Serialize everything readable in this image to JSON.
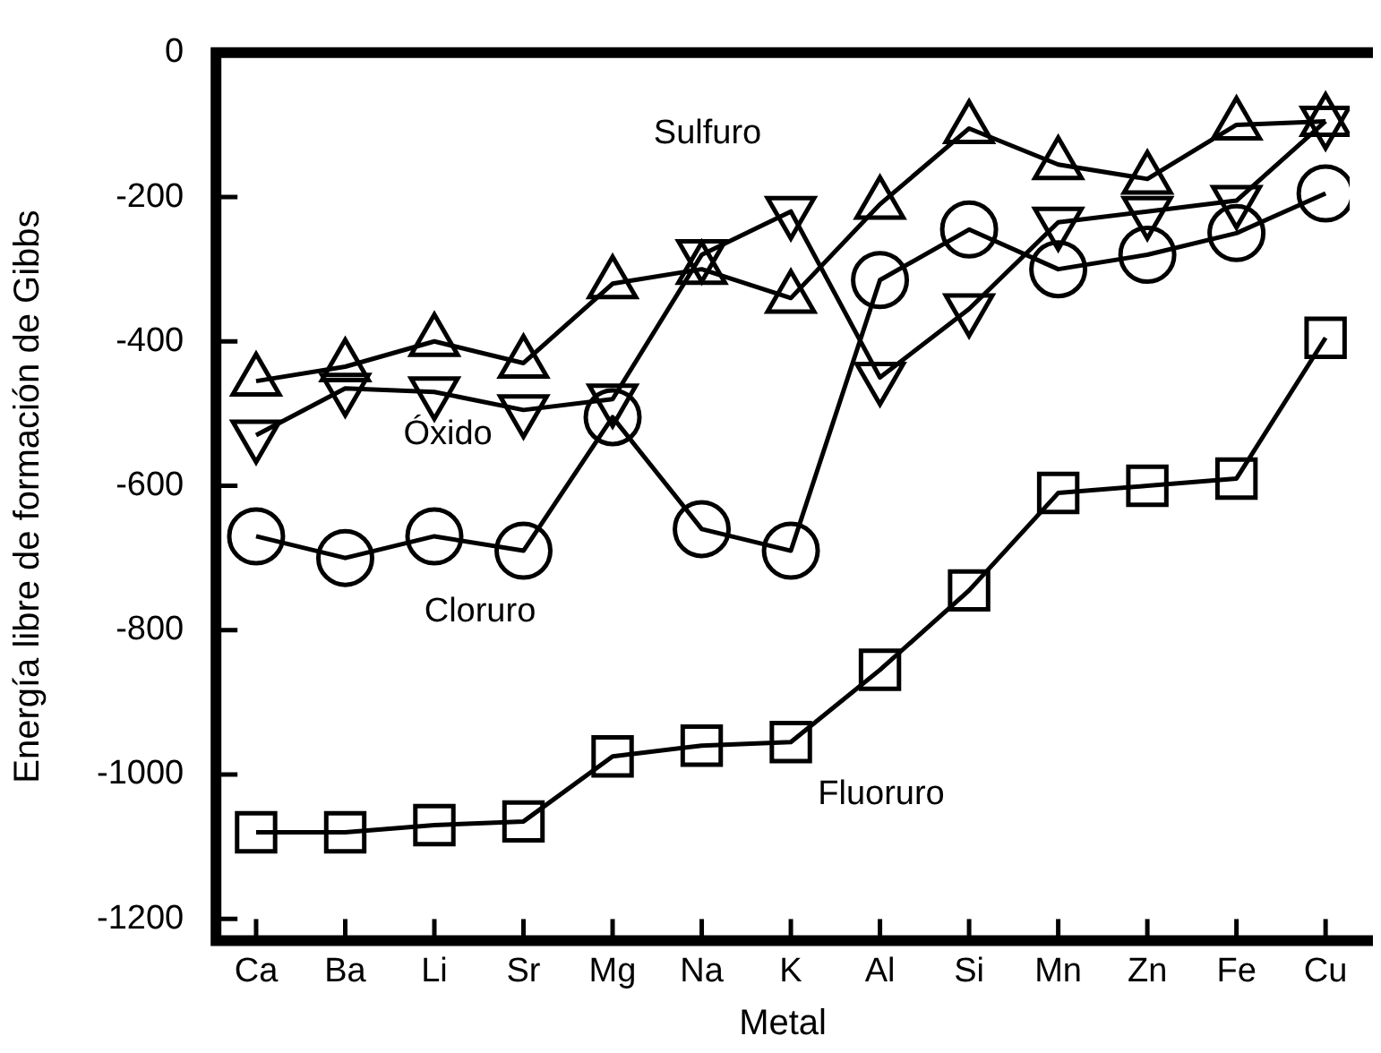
{
  "chart_data": {
    "type": "line",
    "xlabel": "Metal",
    "ylabel": "Energía libre de formación de Gibbs",
    "categories": [
      "Ca",
      "Ba",
      "Li",
      "Sr",
      "Mg",
      "Na",
      "K",
      "Al",
      "Si",
      "Mn",
      "Zn",
      "Fe",
      "Cu"
    ],
    "ylim": [
      -1230,
      0
    ],
    "yticks": [
      0,
      -200,
      -400,
      -600,
      -800,
      -1000,
      -1200
    ],
    "grid": false,
    "legend": false,
    "line_style": "solid",
    "series": [
      {
        "color": "#000000",
        "marker": "triangle",
        "values": [
          -455,
          -435,
          -400,
          -430,
          -320,
          -300,
          -340,
          -210,
          -105,
          -155,
          -175,
          -100,
          -95
        ]
      },
      {
        "color": "#000000",
        "marker": "triangle-down",
        "values": [
          -530,
          -465,
          -470,
          -495,
          -480,
          -280,
          -220,
          -450,
          -355,
          -235,
          -220,
          -205,
          -95
        ]
      },
      {
        "color": "#000000",
        "marker": "circle",
        "values": [
          -670,
          -700,
          -670,
          -690,
          -505,
          -660,
          -690,
          -315,
          -245,
          -300,
          -280,
          -250,
          -195
        ]
      },
      {
        "color": "#000000",
        "marker": "square",
        "values": [
          -1080,
          -1080,
          -1070,
          -1065,
          -975,
          -960,
          -955,
          -855,
          -745,
          -610,
          -600,
          -590,
          -395
        ]
      }
    ],
    "annotations": [
      "Sulfuro",
      "Óxido",
      "Cloruro",
      "Fluoruro"
    ]
  }
}
